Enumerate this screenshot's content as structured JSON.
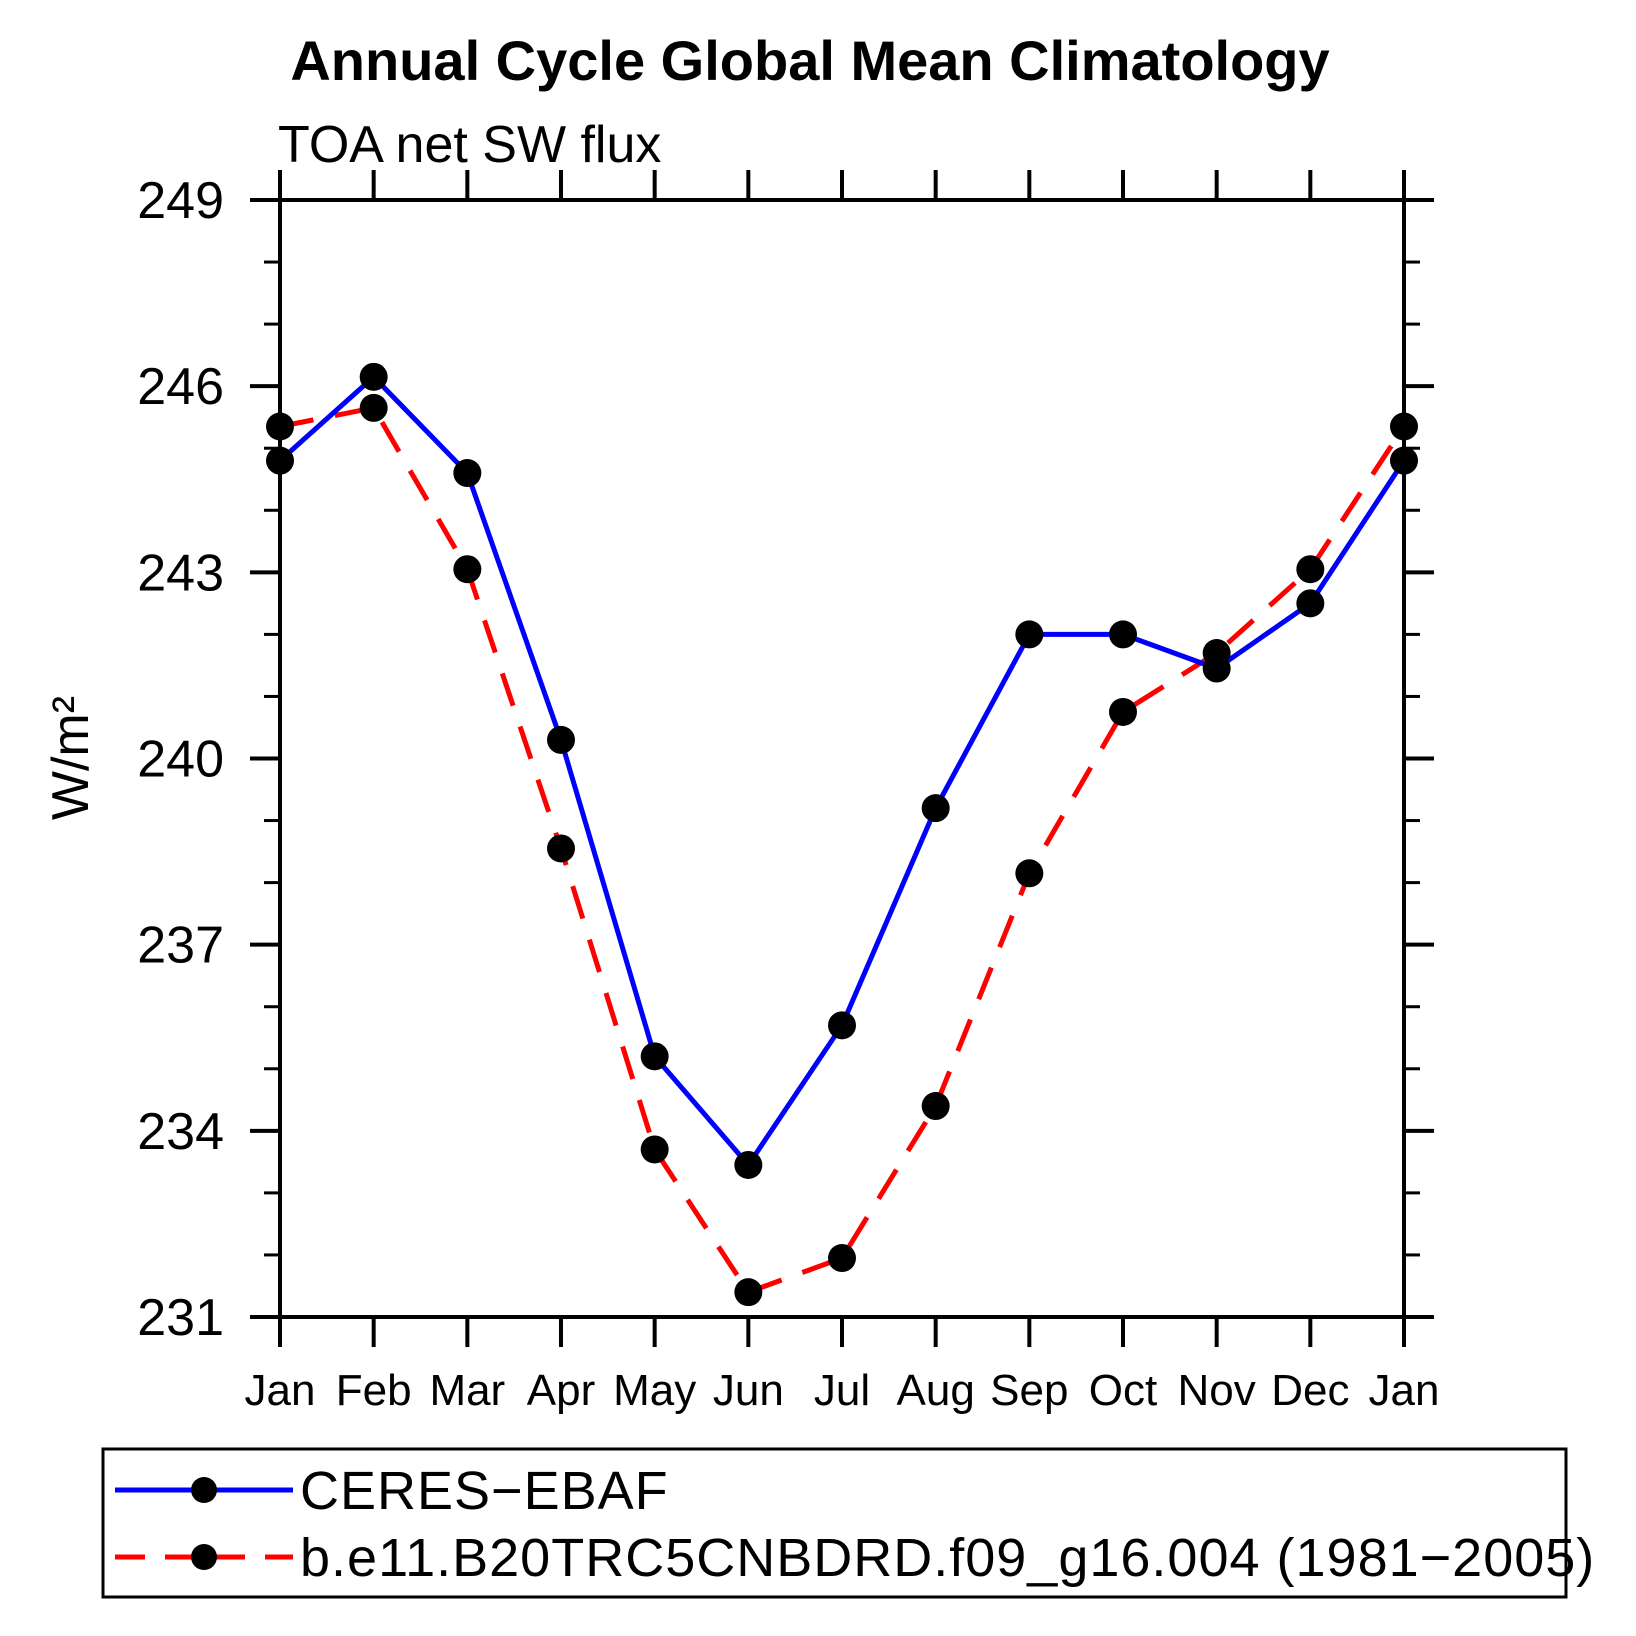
{
  "chart_data": {
    "type": "line",
    "title": "Annual Cycle Global Mean Climatology",
    "subtitle": "TOA net SW flux",
    "ylabel": "W/m²",
    "xlabel": "",
    "x_categories": [
      "Jan",
      "Feb",
      "Mar",
      "Apr",
      "May",
      "Jun",
      "Jul",
      "Aug",
      "Sep",
      "Oct",
      "Nov",
      "Dec",
      "Jan"
    ],
    "ylim": [
      231,
      249
    ],
    "y_major_ticks": [
      231,
      234,
      237,
      240,
      243,
      246,
      249
    ],
    "y_tick_labels": [
      "231",
      "234",
      "237",
      "240",
      "243",
      "246",
      "249"
    ],
    "y_minor_step": 1,
    "grid": "off",
    "legend_position": "bottom",
    "axis_color": "#000000",
    "marker_color": "#000000",
    "series": [
      {
        "name": "CERES−EBAF",
        "color": "#0000ff",
        "line_style": "solid",
        "marker": "circle",
        "values": [
          244.8,
          246.15,
          244.6,
          240.3,
          235.2,
          233.45,
          235.7,
          239.2,
          242.0,
          242.0,
          241.45,
          242.5,
          244.8
        ]
      },
      {
        "name": "b.e11.B20TRC5CNBDRD.f09_g16.004 (1981−2005)",
        "color": "#ff0000",
        "line_style": "dashed",
        "marker": "circle",
        "values": [
          245.35,
          245.65,
          243.05,
          238.55,
          233.7,
          231.4,
          231.95,
          234.4,
          238.15,
          240.75,
          241.7,
          243.05,
          245.35
        ]
      }
    ]
  }
}
